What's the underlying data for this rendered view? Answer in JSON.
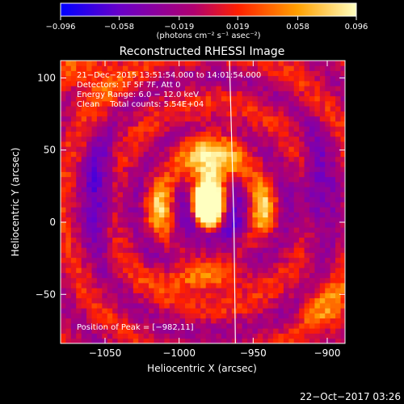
{
  "chart_data": {
    "type": "heatmap",
    "title": "Reconstructed RHESSI Image",
    "xlabel": "Heliocentric X (arcsec)",
    "ylabel": "Heliocentric Y (arcsec)",
    "xlim": [
      -1080,
      -888
    ],
    "ylim": [
      -84,
      112
    ],
    "xticks": [
      -1050,
      -1000,
      -950,
      -900
    ],
    "xtick_labels": [
      "−1050",
      "−1000",
      "−950",
      "−900"
    ],
    "yticks": [
      -50,
      0,
      50,
      100
    ],
    "ytick_labels": [
      "−50",
      "0",
      "50",
      "100"
    ],
    "colorbar": {
      "min": -0.096,
      "max": 0.096,
      "ticks": [
        -0.096,
        -0.058,
        -0.019,
        0.019,
        0.058,
        0.096
      ],
      "tick_labels": [
        "−0.096",
        "−0.058",
        "−0.019",
        "0.019",
        "0.058",
        "0.096"
      ],
      "unit_label": "(photons cm⁻² s⁻¹ asec⁻²)",
      "colors": [
        "#0000ff",
        "#6a00c8",
        "#b00070",
        "#ff2000",
        "#ffa000",
        "#ffffc0"
      ]
    },
    "annotations": [
      "21−Dec−2015 13:51:54.000 to 14:01:54.000",
      "Detectors: 1F 5F 7F, Att 0",
      "Energy Range: 6.0 − 12.0 keV",
      "Clean    Total counts: 5.54E+04"
    ],
    "peak_label": "Position of Peak = [−982,11]",
    "peak": [
      -982,
      11
    ],
    "limb_line": [
      [
        -966,
        112
      ],
      [
        -963,
        0
      ],
      [
        -962,
        -84
      ]
    ],
    "grid": false
  },
  "footer": {
    "timestamp": "22−Oct−2017 03:26"
  }
}
